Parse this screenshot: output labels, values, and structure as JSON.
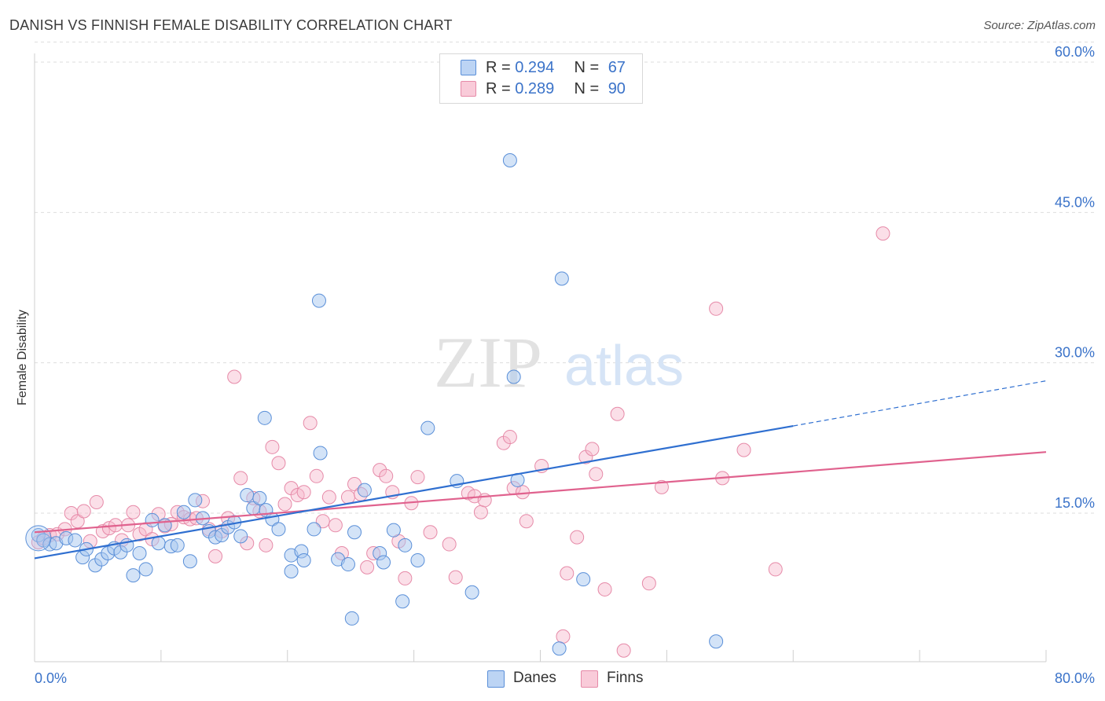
{
  "header": {
    "title": "DANISH VS FINNISH FEMALE DISABILITY CORRELATION CHART",
    "source": "Source: ZipAtlas.com"
  },
  "legend": {
    "rows": [
      {
        "r_label": "R = ",
        "r_value": "0.294",
        "n_label": "N = ",
        "n_value": "67"
      },
      {
        "r_label": "R = ",
        "r_value": "0.289",
        "n_label": "N = ",
        "n_value": "90"
      }
    ]
  },
  "bottom_legend": [
    "Danes",
    "Finns"
  ],
  "watermark": {
    "zip": "ZIP",
    "atlas": "atlas"
  },
  "colors": {
    "danes_fill": "#a8c8f0",
    "danes_stroke": "#5a8fd8",
    "danes_line": "#2f6fd0",
    "finns_fill": "#f6b8cc",
    "finns_stroke": "#e68aa8",
    "finns_line": "#e0628e",
    "tick_text": "#3b73c9",
    "grid": "#dddddd"
  },
  "chart_data": {
    "type": "scatter",
    "title": "DANISH VS FINNISH FEMALE DISABILITY CORRELATION CHART",
    "xlabel": "",
    "ylabel": "Female Disability",
    "xlim": [
      0,
      80
    ],
    "ylim": [
      0,
      62
    ],
    "x_tick_labels": [
      "0.0%",
      "80.0%"
    ],
    "y_ticks": [
      15,
      30,
      45,
      60
    ],
    "y_tick_labels": [
      "15.0%",
      "30.0%",
      "45.0%",
      "60.0%"
    ],
    "grid": true,
    "legend_position": "top-center",
    "series": [
      {
        "name": "Danes",
        "r": 0.294,
        "n": 67,
        "trend": {
          "x0": 0,
          "y0": 10.5,
          "x1": 60,
          "y1": 23.7,
          "dashed_to_x": 80,
          "dashed_to_y": 28.2
        },
        "points": [
          [
            0.3,
            12.8
          ],
          [
            0.7,
            12.3
          ],
          [
            1.2,
            11.9
          ],
          [
            1.7,
            12.0
          ],
          [
            2.5,
            12.5
          ],
          [
            3.2,
            12.3
          ],
          [
            3.8,
            10.6
          ],
          [
            4.1,
            11.4
          ],
          [
            4.8,
            9.8
          ],
          [
            5.3,
            10.4
          ],
          [
            5.8,
            11.0
          ],
          [
            6.3,
            11.5
          ],
          [
            6.8,
            11.1
          ],
          [
            7.3,
            11.8
          ],
          [
            7.8,
            8.8
          ],
          [
            8.3,
            11.0
          ],
          [
            8.8,
            9.4
          ],
          [
            9.3,
            14.3
          ],
          [
            9.8,
            12.0
          ],
          [
            10.3,
            13.8
          ],
          [
            10.8,
            11.7
          ],
          [
            11.3,
            11.8
          ],
          [
            11.8,
            15.1
          ],
          [
            12.3,
            10.2
          ],
          [
            12.7,
            16.3
          ],
          [
            13.3,
            14.5
          ],
          [
            13.8,
            13.2
          ],
          [
            14.3,
            12.6
          ],
          [
            14.8,
            12.8
          ],
          [
            15.3,
            13.6
          ],
          [
            15.8,
            14.1
          ],
          [
            16.3,
            12.7
          ],
          [
            16.8,
            16.8
          ],
          [
            17.3,
            15.5
          ],
          [
            17.8,
            16.5
          ],
          [
            18.3,
            15.3
          ],
          [
            18.2,
            24.5
          ],
          [
            18.8,
            14.4
          ],
          [
            19.3,
            13.4
          ],
          [
            20.3,
            9.2
          ],
          [
            20.3,
            10.8
          ],
          [
            21.1,
            11.2
          ],
          [
            21.3,
            10.3
          ],
          [
            22.1,
            13.4
          ],
          [
            22.5,
            36.2
          ],
          [
            22.6,
            21.0
          ],
          [
            24.0,
            10.4
          ],
          [
            24.8,
            9.9
          ],
          [
            25.3,
            13.1
          ],
          [
            26.1,
            17.3
          ],
          [
            27.3,
            11.0
          ],
          [
            27.6,
            10.1
          ],
          [
            28.4,
            13.3
          ],
          [
            29.1,
            6.2
          ],
          [
            29.3,
            11.8
          ],
          [
            30.3,
            10.3
          ],
          [
            31.1,
            23.5
          ],
          [
            33.4,
            18.2
          ],
          [
            34.6,
            7.1
          ],
          [
            37.6,
            50.2
          ],
          [
            37.9,
            28.6
          ],
          [
            38.2,
            18.3
          ],
          [
            41.7,
            38.4
          ],
          [
            43.4,
            8.4
          ],
          [
            25.1,
            4.5
          ],
          [
            41.5,
            1.5
          ],
          [
            53.9,
            2.2
          ]
        ]
      },
      {
        "name": "Finns",
        "r": 0.289,
        "n": 90,
        "trend": {
          "x0": 0,
          "y0": 13.1,
          "x1": 80,
          "y1": 21.1
        },
        "points": [
          [
            0.3,
            12.1
          ],
          [
            0.7,
            12.5
          ],
          [
            1.2,
            12.8
          ],
          [
            1.8,
            12.9
          ],
          [
            2.4,
            13.4
          ],
          [
            2.9,
            15.0
          ],
          [
            3.4,
            14.2
          ],
          [
            3.9,
            15.2
          ],
          [
            4.4,
            12.2
          ],
          [
            4.9,
            16.1
          ],
          [
            5.4,
            13.2
          ],
          [
            5.9,
            13.5
          ],
          [
            6.4,
            13.8
          ],
          [
            6.9,
            12.3
          ],
          [
            7.4,
            13.8
          ],
          [
            7.8,
            15.1
          ],
          [
            8.3,
            12.9
          ],
          [
            8.8,
            13.4
          ],
          [
            9.3,
            12.4
          ],
          [
            9.8,
            14.9
          ],
          [
            10.3,
            13.7
          ],
          [
            10.8,
            13.9
          ],
          [
            11.3,
            15.1
          ],
          [
            11.8,
            14.6
          ],
          [
            12.3,
            14.4
          ],
          [
            12.8,
            14.5
          ],
          [
            13.3,
            16.2
          ],
          [
            13.8,
            13.4
          ],
          [
            14.3,
            10.7
          ],
          [
            14.8,
            13.2
          ],
          [
            15.3,
            14.5
          ],
          [
            15.8,
            28.6
          ],
          [
            16.3,
            18.5
          ],
          [
            16.8,
            12.0
          ],
          [
            17.3,
            16.5
          ],
          [
            17.8,
            15.2
          ],
          [
            18.3,
            11.8
          ],
          [
            18.8,
            21.6
          ],
          [
            19.3,
            20.0
          ],
          [
            19.8,
            15.9
          ],
          [
            20.3,
            17.5
          ],
          [
            20.8,
            16.8
          ],
          [
            21.3,
            17.1
          ],
          [
            21.8,
            24.0
          ],
          [
            22.3,
            18.7
          ],
          [
            22.8,
            14.2
          ],
          [
            23.3,
            16.6
          ],
          [
            23.8,
            13.8
          ],
          [
            24.3,
            11.0
          ],
          [
            24.8,
            16.6
          ],
          [
            25.3,
            17.9
          ],
          [
            25.8,
            16.9
          ],
          [
            26.3,
            9.6
          ],
          [
            26.8,
            11.0
          ],
          [
            27.3,
            19.3
          ],
          [
            27.8,
            18.7
          ],
          [
            28.3,
            17.1
          ],
          [
            28.8,
            12.2
          ],
          [
            29.3,
            8.5
          ],
          [
            29.8,
            16.0
          ],
          [
            30.3,
            18.6
          ],
          [
            31.3,
            13.1
          ],
          [
            32.8,
            11.9
          ],
          [
            33.3,
            8.6
          ],
          [
            34.3,
            17.0
          ],
          [
            34.8,
            16.7
          ],
          [
            35.3,
            15.1
          ],
          [
            35.6,
            16.3
          ],
          [
            37.1,
            22.0
          ],
          [
            37.6,
            22.6
          ],
          [
            37.9,
            17.5
          ],
          [
            38.6,
            17.1
          ],
          [
            38.9,
            14.2
          ],
          [
            40.1,
            19.7
          ],
          [
            42.1,
            9.0
          ],
          [
            42.9,
            12.6
          ],
          [
            43.6,
            20.6
          ],
          [
            44.1,
            21.4
          ],
          [
            44.4,
            18.9
          ],
          [
            45.1,
            7.4
          ],
          [
            46.1,
            24.9
          ],
          [
            48.6,
            8.0
          ],
          [
            49.6,
            17.6
          ],
          [
            53.9,
            35.4
          ],
          [
            54.4,
            18.5
          ],
          [
            56.1,
            21.3
          ],
          [
            58.6,
            9.4
          ],
          [
            67.1,
            42.9
          ],
          [
            41.8,
            2.7
          ],
          [
            46.6,
            1.3
          ]
        ]
      }
    ]
  }
}
